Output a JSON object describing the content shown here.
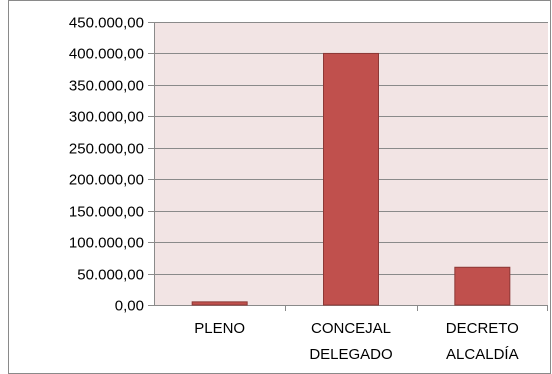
{
  "chart_data": {
    "type": "bar",
    "categories": [
      [
        "PLENO"
      ],
      [
        "CONCEJAL",
        "DELEGADO"
      ],
      [
        "DECRETO",
        "ALCALDÍA"
      ]
    ],
    "values": [
      5000,
      400000,
      60000
    ],
    "ylim": [
      0,
      450000
    ],
    "yticks": [
      0,
      50000,
      100000,
      150000,
      200000,
      250000,
      300000,
      350000,
      400000,
      450000
    ],
    "ytick_labels": [
      "0,00",
      "50.000,00",
      "100.000,00",
      "150.000,00",
      "200.000,00",
      "250.000,00",
      "300.000,00",
      "350.000,00",
      "400.000,00",
      "450.000,00"
    ],
    "grid": true,
    "legend": "none",
    "colors": {
      "bar_fill": "#c0504d",
      "bar_stroke": "#8c3836",
      "plot_background": "#f2e4e4",
      "gridline": "#8a8a8a",
      "axis": "#8a8a8a",
      "frame": "#8a8a8a"
    }
  }
}
